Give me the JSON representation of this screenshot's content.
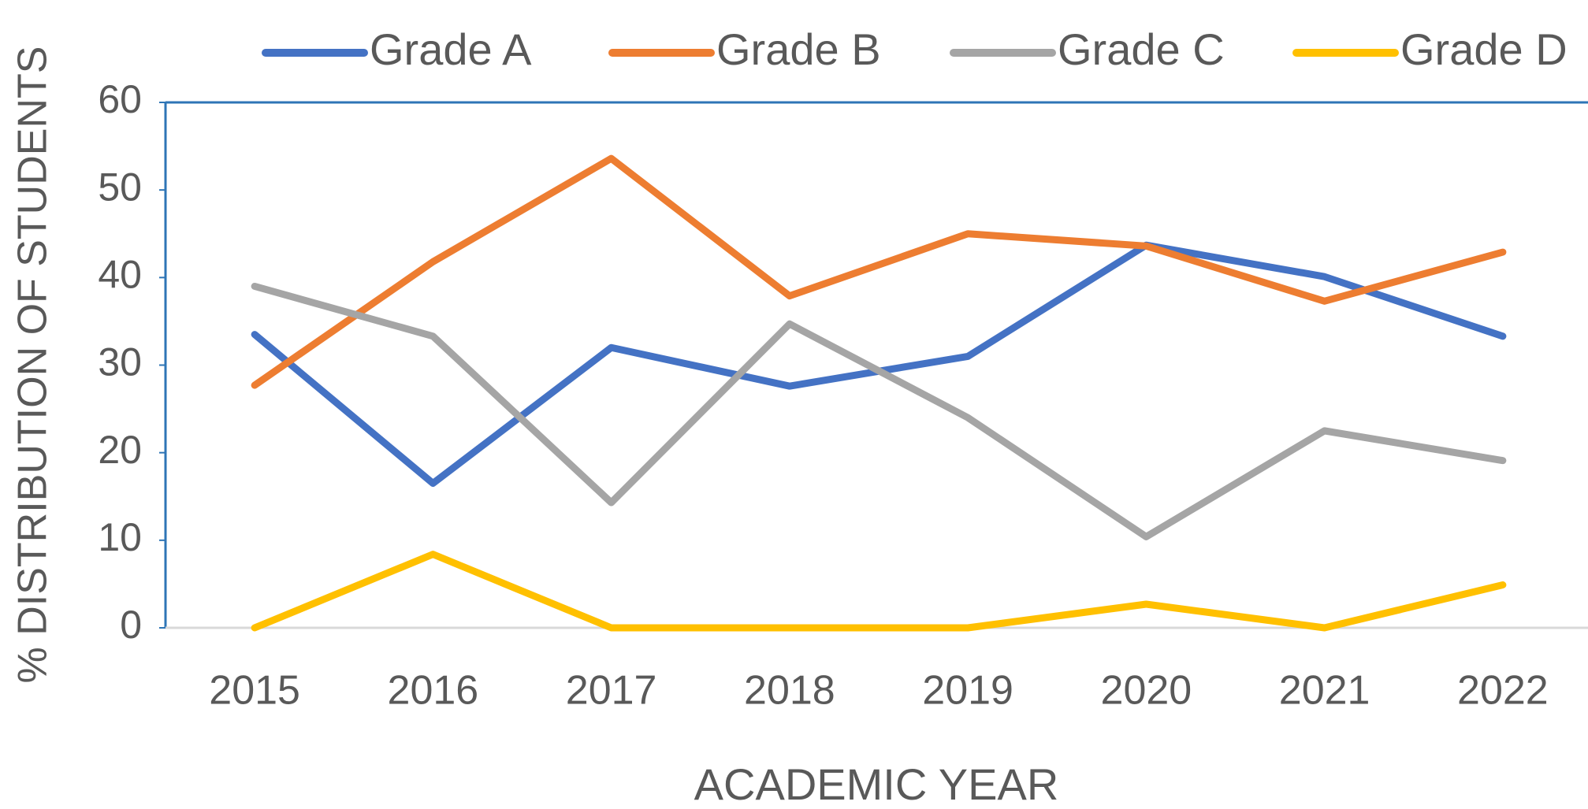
{
  "chart_data": {
    "type": "line",
    "y_label": "% DISTRIBUTION OF STUDENTS",
    "x_label": "ACADEMIC YEAR",
    "categories": [
      "2015",
      "2016",
      "2017",
      "2018",
      "2019",
      "2020",
      "2021",
      "2022"
    ],
    "series": [
      {
        "name": "Grade A",
        "color": "#4472c4",
        "values": [
          33.5,
          16.5,
          32,
          27.6,
          31,
          43.7,
          40.1,
          33.3
        ]
      },
      {
        "name": "Grade B",
        "color": "#ed7d31",
        "values": [
          27.7,
          41.8,
          53.6,
          37.9,
          45,
          43.6,
          37.3,
          42.9
        ]
      },
      {
        "name": "Grade C",
        "color": "#a5a5a5",
        "values": [
          39,
          33.3,
          14.3,
          34.7,
          24,
          10.4,
          22.5,
          19.1
        ]
      },
      {
        "name": "Grade D",
        "color": "#ffc000",
        "values": [
          0,
          8.4,
          0,
          0,
          0,
          2.7,
          0,
          4.9
        ]
      }
    ],
    "ylim": [
      0,
      60
    ],
    "yticks": [
      0,
      10,
      20,
      30,
      40,
      50,
      60
    ],
    "legend": "top"
  }
}
